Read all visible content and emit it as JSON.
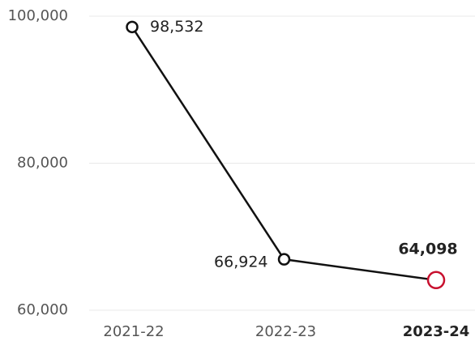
{
  "chart_data": {
    "type": "line",
    "categories": [
      "2021-22",
      "2022-23",
      "2023-24"
    ],
    "series": [
      {
        "name": null,
        "color": "#111111",
        "values": [
          98532,
          66924,
          64098
        ],
        "value_labels": [
          "98,532",
          "66,924",
          "64,098"
        ]
      }
    ],
    "highlight_color": "#c8102e",
    "ylim": [
      60000,
      100000
    ],
    "yticks": [
      {
        "value": 60000,
        "label": "60,000"
      },
      {
        "value": 80000,
        "label": "80,000"
      },
      {
        "value": 100000,
        "label": "100,000"
      }
    ],
    "grid": true
  }
}
